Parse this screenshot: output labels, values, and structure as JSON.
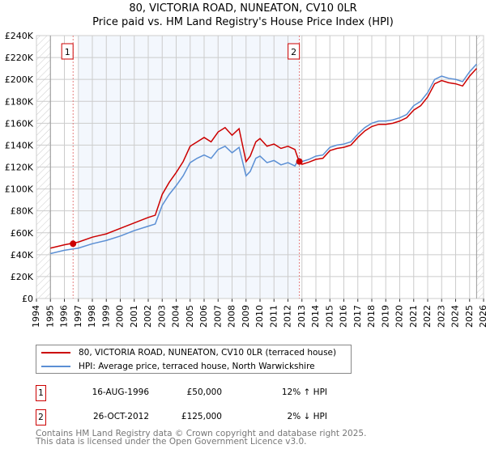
{
  "chart_data": {
    "type": "line",
    "title": "80, VICTORIA ROAD, NUNEATON, CV10 0LR",
    "subtitle": "Price paid vs. HM Land Registry's House Price Index (HPI)",
    "xlim": [
      1994,
      2026
    ],
    "ylim": [
      0,
      240000
    ],
    "x_ticks": [
      "1994",
      "1995",
      "1996",
      "1997",
      "1998",
      "1999",
      "2000",
      "2001",
      "2002",
      "2003",
      "2004",
      "2005",
      "2006",
      "2007",
      "2008",
      "2009",
      "2010",
      "2011",
      "2012",
      "2013",
      "2014",
      "2015",
      "2016",
      "2017",
      "2018",
      "2019",
      "2020",
      "2021",
      "2022",
      "2023",
      "2024",
      "2025",
      "2026"
    ],
    "y_ticks": [
      "£0",
      "£20K",
      "£40K",
      "£60K",
      "£80K",
      "£100K",
      "£120K",
      "£140K",
      "£160K",
      "£180K",
      "£200K",
      "£220K",
      "£240K"
    ],
    "grid": true,
    "x": [
      1995,
      1996,
      1997,
      1998,
      1999,
      2000,
      2001,
      2002,
      2002.5,
      2003,
      2003.5,
      2004,
      2004.5,
      2005,
      2005.5,
      2006,
      2006.5,
      2007,
      2007.5,
      2008,
      2008.5,
      2009,
      2009.3,
      2009.7,
      2010,
      2010.5,
      2011,
      2011.5,
      2012,
      2012.5,
      2012.8,
      2013,
      2013.5,
      2014,
      2014.5,
      2015,
      2015.5,
      2016,
      2016.5,
      2017,
      2017.5,
      2018,
      2018.5,
      2019,
      2019.5,
      2020,
      2020.5,
      2021,
      2021.5,
      2022,
      2022.5,
      2023,
      2023.5,
      2024,
      2024.5,
      2025,
      2025.5
    ],
    "series": [
      {
        "name": "80, VICTORIA ROAD, NUNEATON, CV10 0LR (terraced house)",
        "color": "#cc0000",
        "values": [
          46000,
          49000,
          51500,
          56000,
          59000,
          64000,
          69000,
          74000,
          76000,
          95000,
          106000,
          115000,
          125000,
          139000,
          143000,
          147000,
          143000,
          152000,
          156000,
          149000,
          155000,
          125000,
          130000,
          143000,
          146000,
          139000,
          141000,
          137000,
          139000,
          136000,
          125000,
          122500,
          124500,
          127000,
          128000,
          135000,
          137000,
          138000,
          140000,
          147000,
          153000,
          157000,
          159000,
          159000,
          160000,
          162000,
          165000,
          172000,
          176000,
          184000,
          196000,
          199000,
          197000,
          196000,
          194000,
          203000,
          210000
        ]
      },
      {
        "name": "HPI: Average price, terraced house, North Warwickshire",
        "color": "#5b8fd4",
        "values": [
          41000,
          44000,
          46000,
          50000,
          53000,
          57000,
          62000,
          66000,
          68000,
          85000,
          95000,
          103000,
          112000,
          124000,
          128000,
          131000,
          128000,
          136000,
          139000,
          133000,
          138000,
          112000,
          116000,
          128000,
          130000,
          124000,
          126000,
          122000,
          124000,
          121000,
          128000,
          125000,
          127000,
          130000,
          131000,
          138000,
          140000,
          141000,
          143000,
          150000,
          156000,
          160000,
          162000,
          162000,
          163000,
          165000,
          168000,
          176000,
          180000,
          188000,
          200000,
          203000,
          201000,
          200000,
          198000,
          207000,
          214000
        ]
      }
    ],
    "sales": [
      {
        "label": "1",
        "x": 1996.62,
        "value": 50000,
        "date": "16-AUG-1996",
        "price": "£50,000",
        "hpi": "12% ↑ HPI"
      },
      {
        "label": "2",
        "x": 2012.82,
        "value": 125000,
        "date": "26-OCT-2012",
        "price": "£125,000",
        "hpi": "2% ↓ HPI"
      }
    ],
    "shaded_range": [
      1997,
      2012.82
    ],
    "legend_placement": "below"
  },
  "footer": [
    "Contains HM Land Registry data © Crown copyright and database right 2025.",
    "This data is licensed under the Open Government Licence v3.0."
  ]
}
